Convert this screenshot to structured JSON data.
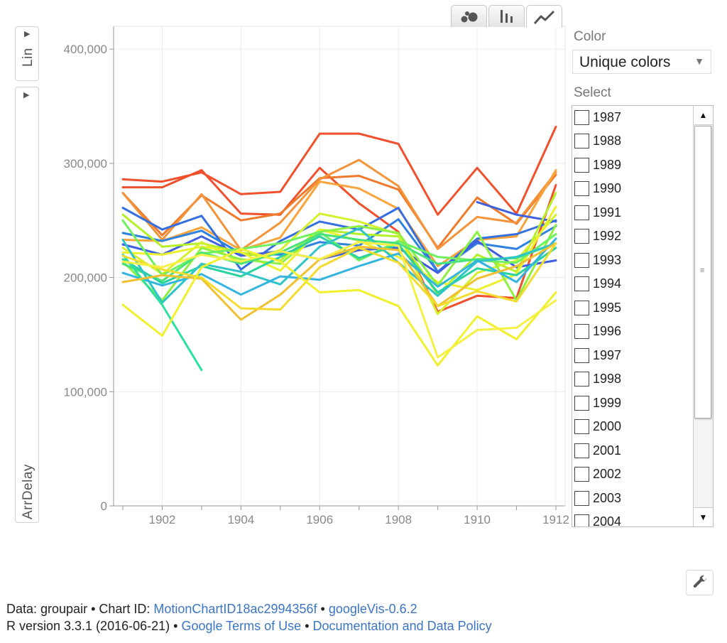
{
  "chart_tabs": [
    {
      "icon": "bubble-chart-icon"
    },
    {
      "icon": "bar-chart-icon"
    },
    {
      "icon": "line-chart-icon",
      "active": true
    }
  ],
  "y_scale_label": "Lin",
  "y_axis_label": "ArrDelay",
  "color_panel": {
    "label": "Color",
    "selected": "Unique colors"
  },
  "select_panel": {
    "label": "Select",
    "items": [
      "1987",
      "1988",
      "1989",
      "1990",
      "1991",
      "1992",
      "1993",
      "1994",
      "1995",
      "1996",
      "1997",
      "1998",
      "1999",
      "2000",
      "2001",
      "2002",
      "2003",
      "2004"
    ]
  },
  "footer": {
    "line1_prefix": "Data: groupair • Chart ID: ",
    "chart_id": "MotionChartID18ac2994356f",
    "line1_sep": " • ",
    "package": "googleVis-0.6.2",
    "line2_prefix": "R version 3.3.1 (2016-06-21) • ",
    "terms": "Google Terms of Use",
    "line2_sep": " • ",
    "policy": "Documentation and Data Policy"
  },
  "chart_data": {
    "type": "line",
    "ylabel": "ArrDelay",
    "xlim": [
      1900.97,
      1912
    ],
    "ylim": [
      0,
      420000
    ],
    "x_ticks": [
      1902,
      1904,
      1906,
      1908,
      1910,
      1912
    ],
    "y_ticks": [
      0,
      100000,
      200000,
      300000,
      400000
    ],
    "y_tick_labels": [
      "0",
      "100,000",
      "200,000",
      "300,000",
      "400,000"
    ],
    "grid": true,
    "x": [
      1901,
      1902,
      1903,
      1904,
      1905,
      1906,
      1907,
      1908,
      1909,
      1910,
      1911,
      1912
    ],
    "series": [
      {
        "color": "#f0502b",
        "values": [
          286000,
          284000,
          292000,
          273000,
          275000,
          326000,
          326000,
          317000,
          255000,
          296000,
          256000,
          332000
        ]
      },
      {
        "color": "#f0502b",
        "values": [
          279000,
          279000,
          294000,
          256000,
          255000,
          296000,
          265000,
          240000,
          170000,
          184000,
          182000,
          281000
        ]
      },
      {
        "color": "#f07a2b",
        "values": [
          274000,
          237000,
          272000,
          250000,
          256000,
          287000,
          289000,
          277000,
          226000,
          270000,
          247000,
          290000
        ]
      },
      {
        "color": "#f4943a",
        "values": [
          274000,
          233000,
          273000,
          224000,
          248000,
          286000,
          303000,
          280000,
          225000,
          253000,
          248000,
          292000
        ]
      },
      {
        "color": "#f9a43a",
        "values": [
          233000,
          232000,
          244000,
          224000,
          235000,
          284000,
          278000,
          260000,
          210000,
          233000,
          236000,
          294000
        ]
      },
      {
        "color": "#3d5fe0",
        "values": [
          null,
          null,
          null,
          null,
          null,
          null,
          null,
          null,
          null,
          266000,
          255000,
          249000
        ]
      },
      {
        "color": "#3570e0",
        "values": [
          261000,
          242000,
          254000,
          207000,
          232000,
          249000,
          242000,
          261000,
          205000,
          234000,
          238000,
          250000
        ]
      },
      {
        "color": "#2f82e0",
        "values": [
          239000,
          232000,
          241000,
          221000,
          220000,
          231000,
          228000,
          251000,
          205000,
          230000,
          225000,
          245000
        ]
      },
      {
        "color": "#3d5fe0",
        "values": [
          229000,
          220000,
          236000,
          219000,
          223000,
          216000,
          224000,
          226000,
          204000,
          232000,
          209000,
          215000
        ]
      },
      {
        "color": "#b4f028",
        "values": [
          255000,
          227000,
          230000,
          222000,
          215000,
          242000,
          238000,
          236000,
          185000,
          220000,
          205000,
          274000
        ]
      },
      {
        "color": "#d6f02e",
        "values": [
          226000,
          203000,
          231000,
          213000,
          224000,
          256000,
          249000,
          238000,
          168000,
          204000,
          215000,
          255000
        ]
      },
      {
        "color": "#ecf02e",
        "values": [
          222000,
          220000,
          227000,
          222000,
          206000,
          242000,
          232000,
          218000,
          196000,
          189000,
          203000,
          262000
        ]
      },
      {
        "color": "#8ef040",
        "values": [
          214000,
          180000,
          226000,
          216000,
          212000,
          240000,
          245000,
          239000,
          193000,
          240000,
          180000,
          246000
        ]
      },
      {
        "color": "#6ef060",
        "values": [
          250000,
          202000,
          221000,
          225000,
          230000,
          240000,
          215000,
          232000,
          218000,
          215000,
          213000,
          238000
        ]
      },
      {
        "color": "#48e27a",
        "values": [
          212000,
          197000,
          222000,
          212000,
          222000,
          238000,
          233000,
          230000,
          212000,
          216000,
          217000,
          230000
        ]
      },
      {
        "color": "#2ad2a0",
        "values": [
          216000,
          195000,
          210000,
          201000,
          218000,
          236000,
          217000,
          229000,
          187000,
          208000,
          202000,
          226000
        ]
      },
      {
        "color": "#2ec4c8",
        "values": [
          233000,
          178000,
          212000,
          205000,
          194000,
          227000,
          243000,
          213000,
          184000,
          214000,
          218000,
          230000
        ]
      },
      {
        "color": "#36b4e0",
        "values": [
          204000,
          193000,
          203000,
          185000,
          201000,
          198000,
          210000,
          221000,
          192000,
          215000,
          196000,
          234000
        ]
      },
      {
        "color": "#2ee0a0",
        "values": [
          220000,
          176000,
          119000,
          null,
          null,
          null,
          null,
          null,
          null,
          null,
          null,
          null
        ]
      },
      {
        "color": "#f0c030",
        "values": [
          196000,
          202000,
          199000,
          163000,
          185000,
          216000,
          227000,
          224000,
          175000,
          199000,
          210000,
          230000
        ]
      },
      {
        "color": "#f4dc2e",
        "values": [
          219000,
          207000,
          200000,
          173000,
          172000,
          209000,
          226000,
          213000,
          175000,
          188000,
          179000,
          230000
        ]
      },
      {
        "color": "#f0f02e",
        "values": [
          176000,
          149000,
          209000,
          225000,
          214000,
          187000,
          189000,
          175000,
          123000,
          166000,
          146000,
          187000
        ]
      },
      {
        "color": "#f4f046",
        "values": [
          214000,
          209000,
          220000,
          214000,
          223000,
          216000,
          231000,
          228000,
          130000,
          154000,
          156000,
          180000
        ]
      }
    ]
  }
}
